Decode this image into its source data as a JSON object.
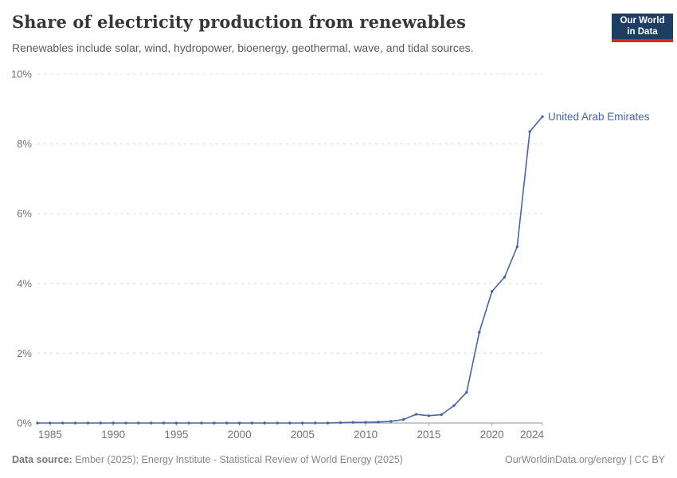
{
  "header": {
    "title": "Share of electricity production from renewables",
    "subtitle": "Renewables include solar, wind, hydropower, bioenergy, geothermal, wave, and tidal sources.",
    "logo_line1": "Our World",
    "logo_line2": "in Data",
    "logo_bg_color": "#1d3d63",
    "logo_bar_color": "#d42b21"
  },
  "chart_data": {
    "type": "line",
    "title": "Share of electricity production from renewables",
    "xlabel": "",
    "ylabel": "",
    "xlim": [
      1984,
      2024
    ],
    "ylim": [
      0,
      10
    ],
    "x_ticks": [
      1985,
      1990,
      1995,
      2000,
      2005,
      2010,
      2015,
      2020,
      2024
    ],
    "y_ticks": [
      0,
      2,
      4,
      6,
      8,
      10
    ],
    "y_tick_suffix": "%",
    "grid": "horizontal-dashed",
    "grid_color": "#dcdcdc",
    "axis_color": "#8f8f8f",
    "tick_label_color": "#737373",
    "series": [
      {
        "name": "United Arab Emirates",
        "color": "#4266a8",
        "x": [
          1984,
          1985,
          1986,
          1987,
          1988,
          1989,
          1990,
          1991,
          1992,
          1993,
          1994,
          1995,
          1996,
          1997,
          1998,
          1999,
          2000,
          2001,
          2002,
          2003,
          2004,
          2005,
          2006,
          2007,
          2008,
          2009,
          2010,
          2011,
          2012,
          2013,
          2014,
          2015,
          2016,
          2017,
          2018,
          2019,
          2020,
          2021,
          2022,
          2023,
          2024
        ],
        "values": [
          0,
          0,
          0,
          0,
          0,
          0,
          0,
          0,
          0,
          0,
          0,
          0,
          0,
          0,
          0,
          0,
          0,
          0,
          0,
          0,
          0,
          0,
          0,
          0,
          0.01,
          0.02,
          0.02,
          0.03,
          0.05,
          0.1,
          0.25,
          0.21,
          0.24,
          0.5,
          0.88,
          2.6,
          3.77,
          4.18,
          5.05,
          8.35,
          8.78
        ]
      }
    ]
  },
  "footer": {
    "datasource_label": "Data source:",
    "datasource": "Ember (2025); Energy Institute - Statistical Review of World Energy (2025)",
    "credit": "OurWorldinData.org/energy | CC BY"
  }
}
